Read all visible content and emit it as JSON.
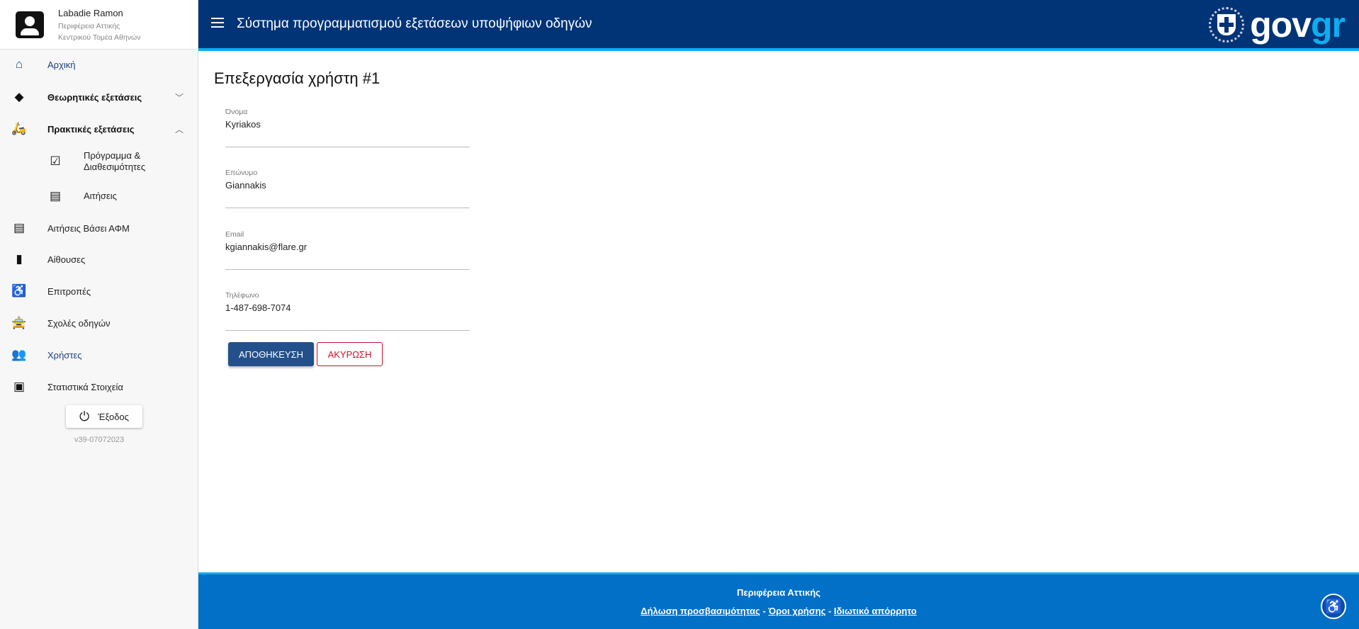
{
  "user": {
    "name": "Labadie Ramon",
    "region": "Περιφέρεια Αττικής",
    "sector": "Κεντρικού Τομέα Αθηνών"
  },
  "sidebar": {
    "items": [
      {
        "label": "Αρχική",
        "icon": "home-icon"
      },
      {
        "label": "Θεωρητικές εξετάσεις",
        "icon": "directions-icon",
        "expanded": false
      },
      {
        "label": "Πρακτικές εξετάσεις",
        "icon": "moped-icon",
        "expanded": true
      },
      {
        "label": "Πρόγραμμα & Διαθεσιμότητες",
        "icon": "calendar-check-icon"
      },
      {
        "label": "Αιτήσεις",
        "icon": "clipboard-icon"
      },
      {
        "label": "Αιτήσεις Βάσει ΑΦΜ",
        "icon": "clipboard-icon"
      },
      {
        "label": "Αίθουσες",
        "icon": "door-icon"
      },
      {
        "label": "Επιτροπές",
        "icon": "seat-icon"
      },
      {
        "label": "Σχολές οδηγών",
        "icon": "car-icon"
      },
      {
        "label": "Χρήστες",
        "icon": "people-icon"
      },
      {
        "label": "Στατιστικά Στοιχεία",
        "icon": "chart-icon"
      }
    ],
    "logout": "Έξοδος",
    "version": "v39-07072023"
  },
  "header": {
    "title": "Σύστημα προγραμματισμού εξετάσεων υποψήφιων οδηγών",
    "logo_gov": "gov",
    "logo_gr": "gr"
  },
  "main": {
    "title": "Επεξεργασία χρήστη #1",
    "fields": [
      {
        "label": "Όνομα",
        "value": "Kyriakos"
      },
      {
        "label": "Επώνυμο",
        "value": "Giannakis"
      },
      {
        "label": "Email",
        "value": "kgiannakis@flare.gr"
      },
      {
        "label": "Τηλέφωνο",
        "value": "1-487-698-7074"
      }
    ],
    "save": "ΑΠΟΘΗΚΕΥΣΗ",
    "cancel": "ΑΚΥΡΩΣΗ"
  },
  "footer": {
    "org": "Περιφέρεια Αττικής",
    "links": [
      "Δήλωση προσβασιμότητας",
      "Όροι χρήσης",
      "Ιδιωτικό απόρρητο"
    ],
    "sep": " - "
  },
  "colors": {
    "header": "#003476",
    "accent": "#0daeef",
    "footer": "#0270c7",
    "save": "#23508a",
    "cancel": "#c8102e"
  }
}
